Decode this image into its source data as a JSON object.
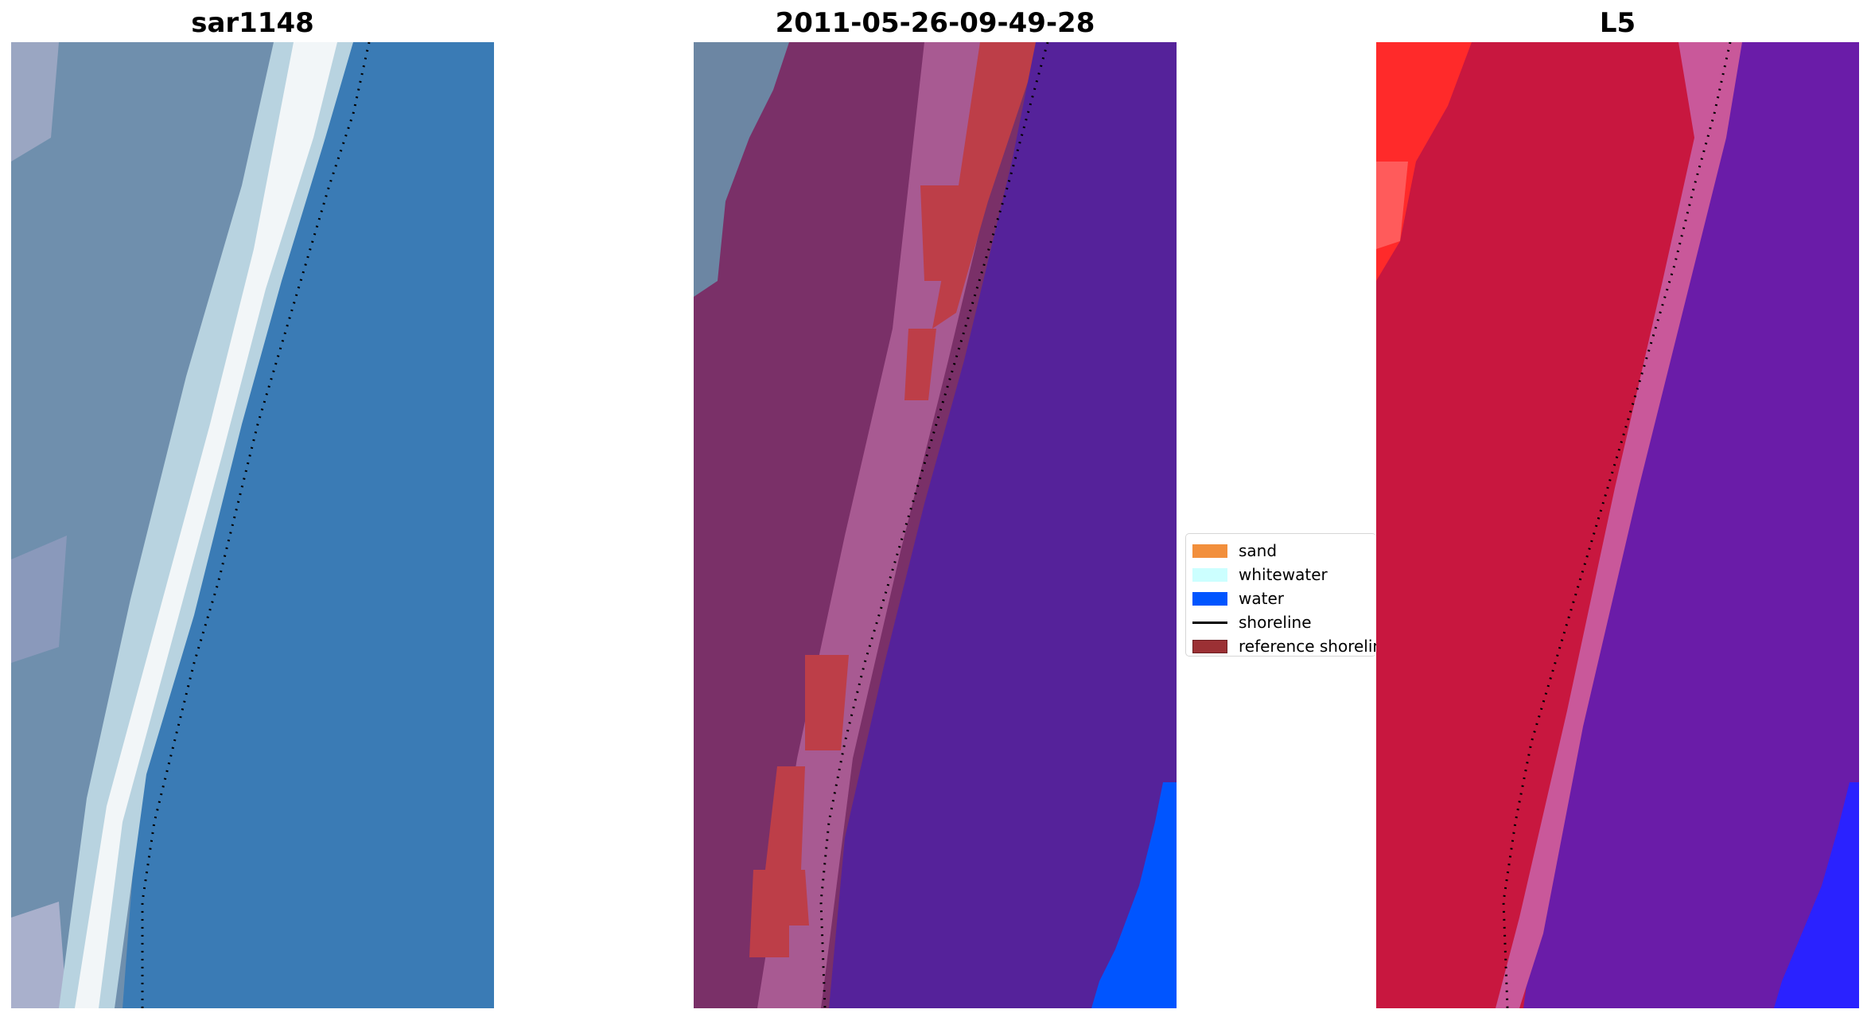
{
  "panels": [
    {
      "title": "sar1148",
      "kind": "rgb"
    },
    {
      "title": "2011-05-26-09-49-28",
      "kind": "classified"
    },
    {
      "title": "L5",
      "kind": "index"
    }
  ],
  "legend": {
    "items": [
      {
        "label": "sand",
        "color": "#f28f3c",
        "type": "patch"
      },
      {
        "label": "whitewater",
        "color": "#ccffff",
        "type": "patch"
      },
      {
        "label": "water",
        "color": "#0055ff",
        "type": "patch"
      },
      {
        "label": "shoreline",
        "color": "#000000",
        "type": "line"
      },
      {
        "label": "reference shoreline",
        "color": "#9b3034",
        "type": "patch"
      }
    ]
  },
  "colors": {
    "ocean_blue": "#3a7bb5",
    "sand_grey": "#7a93ad",
    "surf_white": "#eef4f6",
    "land_purple": "#7a3068",
    "water_purple": "#55229a",
    "reference_red": "#bd3e48",
    "index_red": "#c8173f",
    "index_violet": "#6a1ca8",
    "water_blue": "#0055ff"
  }
}
